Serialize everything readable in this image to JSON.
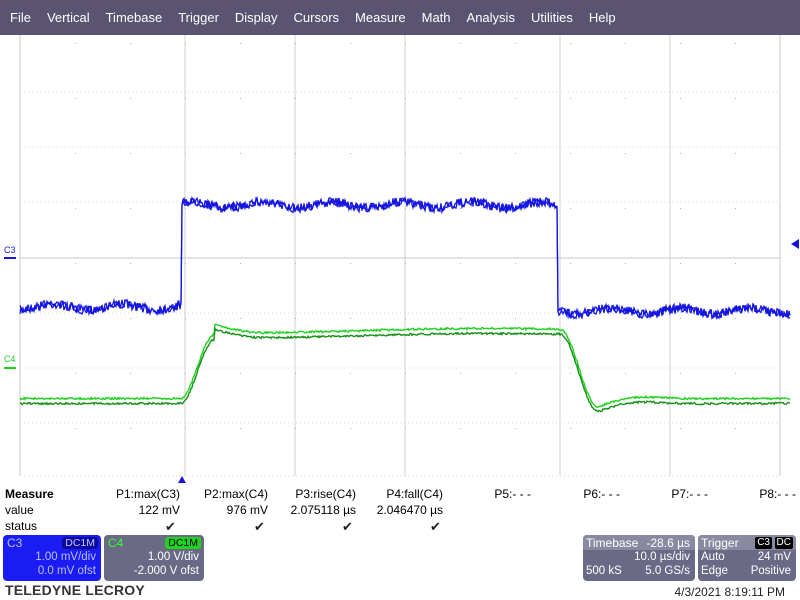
{
  "menu": [
    "File",
    "Vertical",
    "Timebase",
    "Trigger",
    "Display",
    "Cursors",
    "Measure",
    "Math",
    "Analysis",
    "Utilities",
    "Help"
  ],
  "channels": {
    "c3": {
      "label": "C3",
      "color": "#1515e0"
    },
    "c4": {
      "label": "C4",
      "color": "#1fd11f"
    }
  },
  "measure": {
    "title": "Measure",
    "row_labels": [
      "value",
      "status"
    ],
    "params": [
      {
        "name": "P1:max(C3)",
        "value": "122 mV",
        "status": true
      },
      {
        "name": "P2:max(C4)",
        "value": "976 mV",
        "status": true
      },
      {
        "name": "P3:rise(C4)",
        "value": "2.075118 µs",
        "status": true
      },
      {
        "name": "P4:fall(C4)",
        "value": "2.046470 µs",
        "status": true
      },
      {
        "name": "P5:- - -",
        "value": "",
        "status": false
      },
      {
        "name": "P6:- - -",
        "value": "",
        "status": false
      },
      {
        "name": "P7:- - -",
        "value": "",
        "status": false
      },
      {
        "name": "P8:- - -",
        "value": "",
        "status": false
      }
    ]
  },
  "ch3_panel": {
    "title": "C3",
    "coupling": "DC1M",
    "vdiv": "1.00 mV/div",
    "offset": "0.0 mV ofst"
  },
  "ch4_panel": {
    "title": "C4",
    "coupling": "DC1M",
    "vdiv": "1.00 V/div",
    "offset": "-2.000 V ofst"
  },
  "timebase": {
    "title": "Timebase",
    "delay": "-28.6 µs",
    "tdiv": "10.0 µs/div",
    "samples": "500 kS",
    "rate": "5.0 GS/s"
  },
  "trigger": {
    "title": "Trigger",
    "source": "C3",
    "coupling": "DC",
    "mode": "Auto",
    "level": "24 mV",
    "type": "Edge",
    "slope": "Positive"
  },
  "brand": "TELEDYNE LECROY",
  "datetime": "4/3/2021 8:19:11 PM"
}
